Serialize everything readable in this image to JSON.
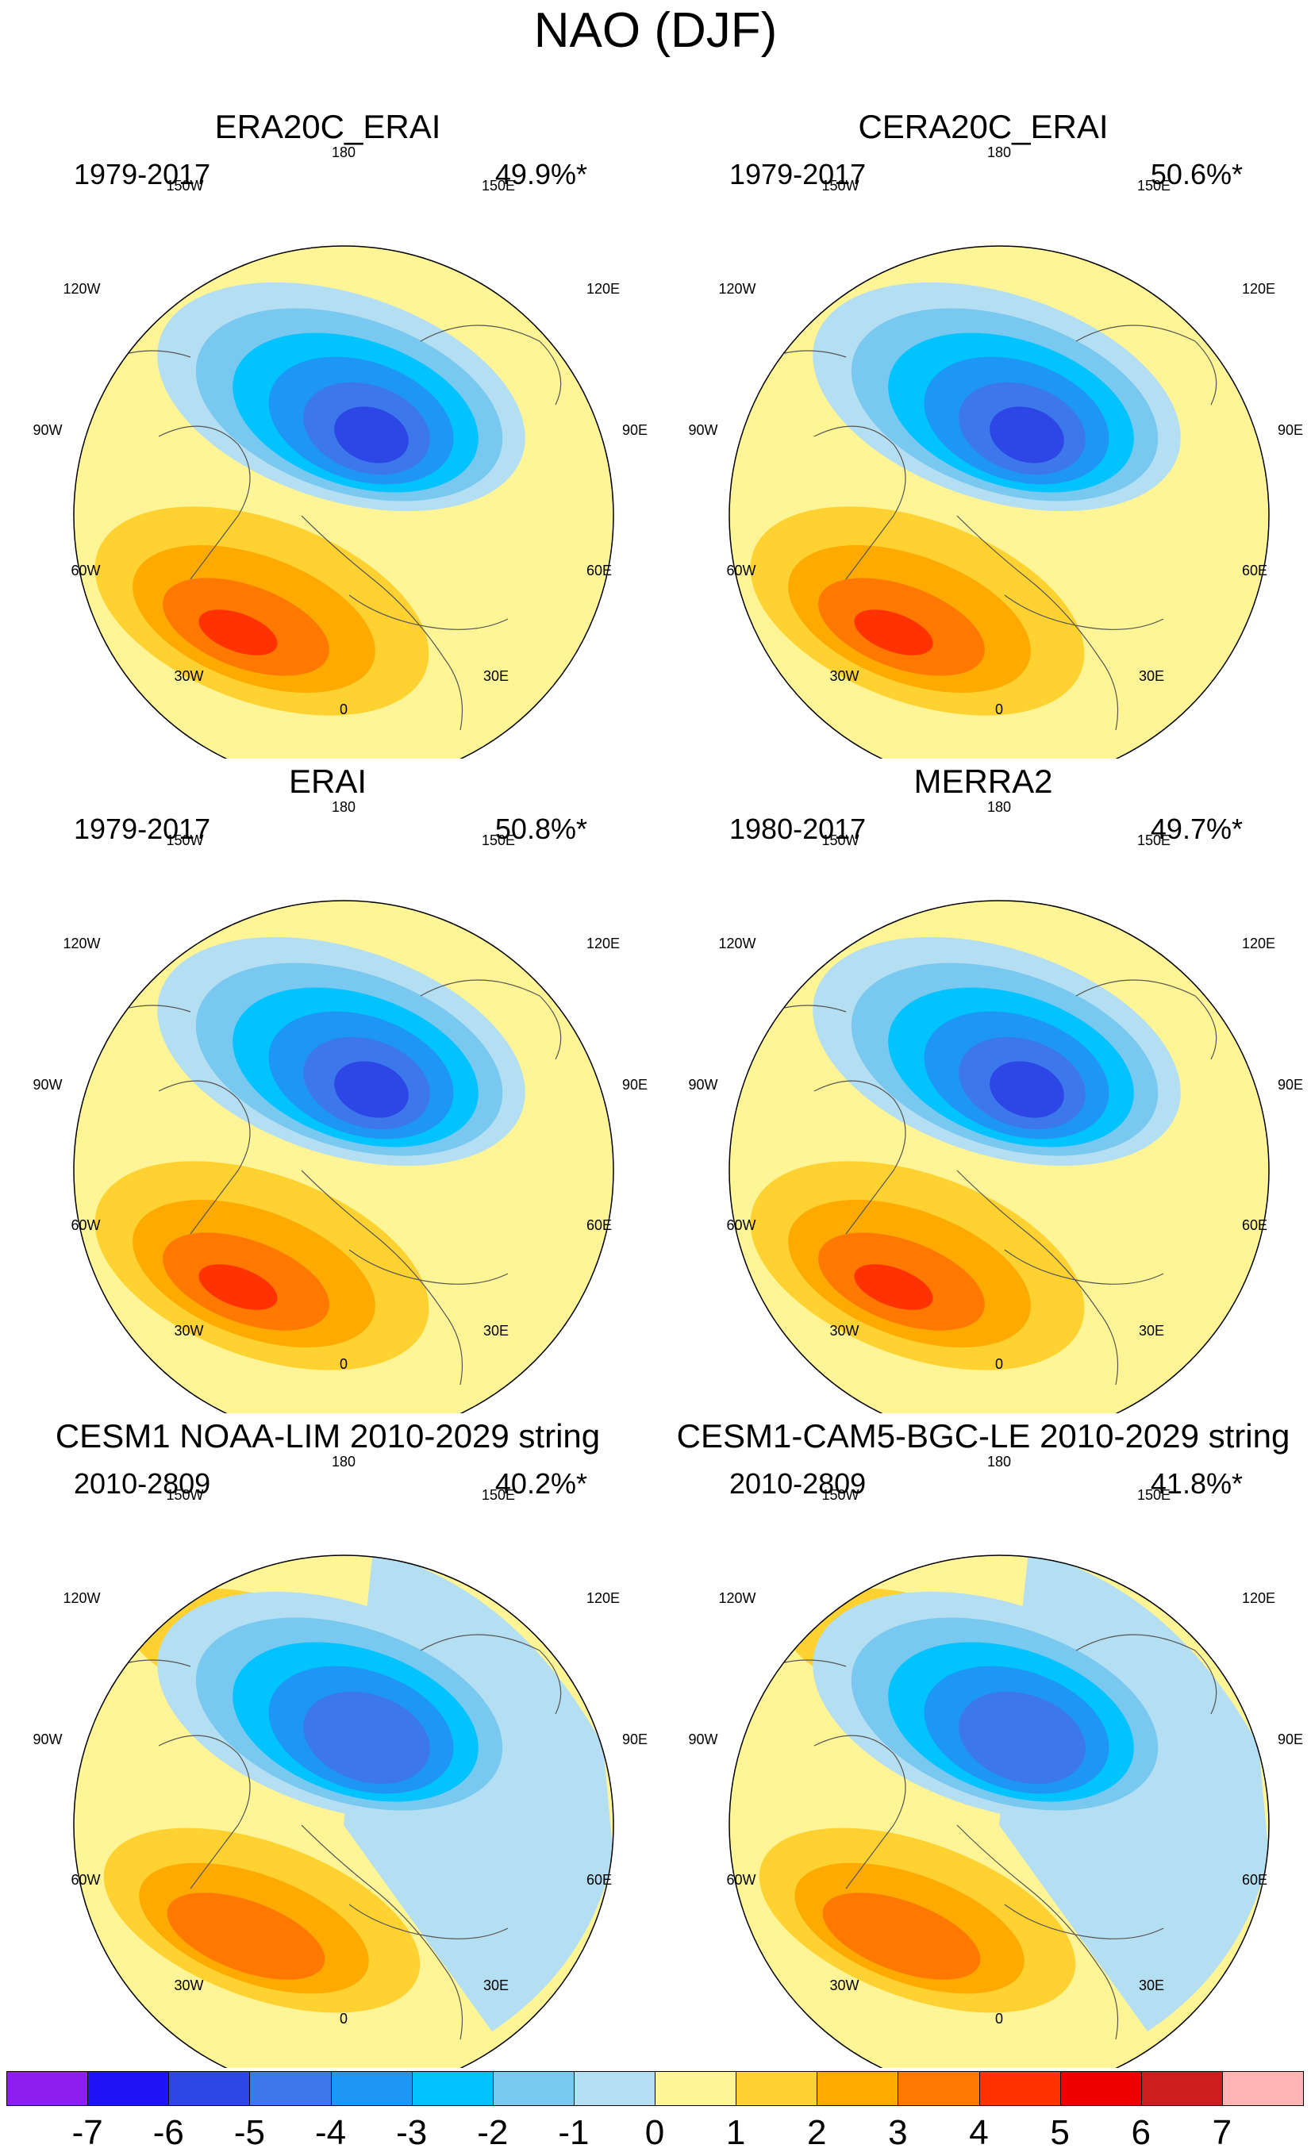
{
  "title": "NAO (DJF)",
  "panels": [
    {
      "title": "ERA20C_ERAI",
      "years": "1979-2017",
      "variance": "49.9%*",
      "variant": "reanalysis"
    },
    {
      "title": "CERA20C_ERAI",
      "years": "1979-2017",
      "variance": "50.6%*",
      "variant": "reanalysis"
    },
    {
      "title": "ERAI",
      "years": "1979-2017",
      "variance": "50.8%*",
      "variant": "reanalysis"
    },
    {
      "title": "MERRA2",
      "years": "1980-2017",
      "variance": "49.7%*",
      "variant": "reanalysis"
    },
    {
      "title": "CESM1 NOAA-LIM 2010-2029 string",
      "years": "2010-2809",
      "variance": "40.2%*",
      "variant": "model"
    },
    {
      "title": "CESM1-CAM5-BGC-LE 2010-2029 string",
      "years": "2010-2809",
      "variance": "41.8%*",
      "variant": "model"
    }
  ],
  "longitude_labels": {
    "top": "180",
    "bottom": "0",
    "left": [
      "150W",
      "120W",
      "90W",
      "60W",
      "30W"
    ],
    "right": [
      "150E",
      "120E",
      "90E",
      "60E",
      "30E"
    ]
  },
  "colorbar": {
    "colors": [
      "#8c1ff0",
      "#1e14f5",
      "#2d46e6",
      "#3c78eb",
      "#1e96f5",
      "#00c3ff",
      "#78c8f0",
      "#b4def2",
      "#fff596",
      "#ffd232",
      "#ffaa00",
      "#ff7800",
      "#ff3200",
      "#ee0000",
      "#cc1e1e",
      "#ffb4b4"
    ],
    "labels": [
      "-7",
      "-6",
      "-5",
      "-4",
      "-3",
      "-2",
      "-1",
      "0",
      "1",
      "2",
      "3",
      "4",
      "5",
      "6",
      "7"
    ]
  },
  "contour_levels": {
    "negative": [
      "#b4def2",
      "#78c8f0",
      "#00c3ff",
      "#1e96f5",
      "#3c78eb",
      "#2d46e6"
    ],
    "positive": [
      "#ffd232",
      "#ffaa00",
      "#ff7800",
      "#ff3200"
    ],
    "background": "#fff596"
  }
}
